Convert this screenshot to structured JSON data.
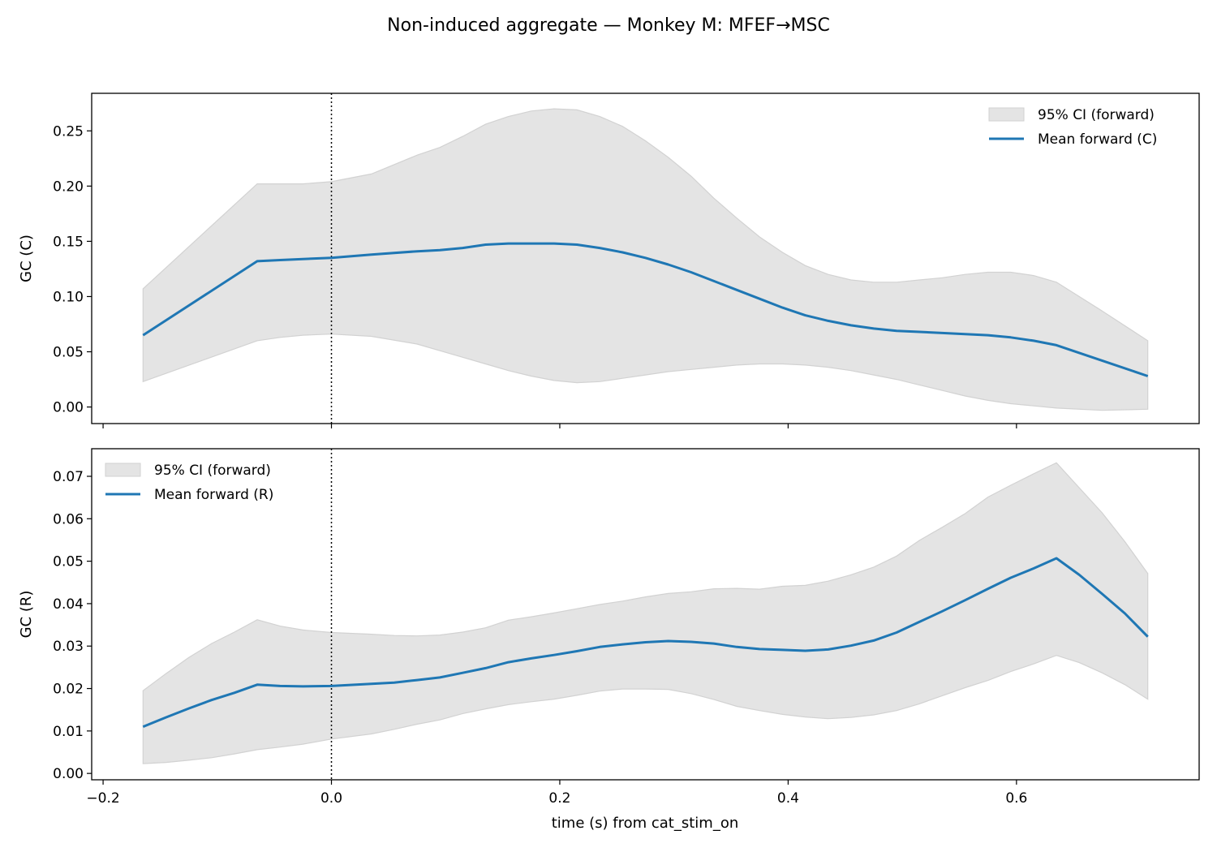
{
  "figure": {
    "title": "Non-induced aggregate — Monkey M: MFEF→MSC",
    "xlabel": "time (s) from cat_stim_on"
  },
  "colors": {
    "mean_line": "#1f77b4",
    "ci_fill": "#e4e4e4",
    "ci_edge": "#d2d2d2",
    "reference_line": "#000000"
  },
  "chart_data": [
    {
      "type": "line",
      "ylabel": "GC (C)",
      "xlim": [
        -0.21,
        0.76
      ],
      "ylim": [
        -0.015,
        0.284
      ],
      "xticks": [
        -0.2,
        0.0,
        0.2,
        0.4,
        0.6
      ],
      "xtick_labels_shown": false,
      "yticks": [
        0.0,
        0.05,
        0.1,
        0.15,
        0.2,
        0.25
      ],
      "ytick_labels": [
        "0.00",
        "0.05",
        "0.10",
        "0.15",
        "0.20",
        "0.25"
      ],
      "vline_x": 0.0,
      "legend_position": "upper-right",
      "legend": [
        "95% CI (forward)",
        "Mean forward (C)"
      ],
      "x": [
        -0.165,
        -0.065,
        -0.045,
        -0.025,
        0.0,
        0.035,
        0.075,
        0.095,
        0.115,
        0.135,
        0.155,
        0.175,
        0.195,
        0.215,
        0.235,
        0.255,
        0.275,
        0.295,
        0.315,
        0.335,
        0.355,
        0.375,
        0.395,
        0.415,
        0.435,
        0.455,
        0.475,
        0.495,
        0.515,
        0.535,
        0.555,
        0.575,
        0.595,
        0.615,
        0.635,
        0.675,
        0.715
      ],
      "mean": [
        0.065,
        0.132,
        0.133,
        0.134,
        0.135,
        0.138,
        0.141,
        0.142,
        0.144,
        0.147,
        0.148,
        0.148,
        0.148,
        0.147,
        0.144,
        0.14,
        0.135,
        0.129,
        0.122,
        0.114,
        0.106,
        0.098,
        0.09,
        0.083,
        0.078,
        0.074,
        0.071,
        0.069,
        0.068,
        0.067,
        0.066,
        0.065,
        0.063,
        0.06,
        0.056,
        0.042,
        0.028
      ],
      "ci_upper": [
        0.107,
        0.202,
        0.202,
        0.202,
        0.204,
        0.211,
        0.228,
        0.235,
        0.245,
        0.256,
        0.263,
        0.268,
        0.27,
        0.269,
        0.263,
        0.254,
        0.241,
        0.226,
        0.209,
        0.189,
        0.171,
        0.154,
        0.14,
        0.128,
        0.12,
        0.115,
        0.113,
        0.113,
        0.115,
        0.117,
        0.12,
        0.122,
        0.122,
        0.119,
        0.113,
        0.087,
        0.06
      ],
      "ci_lower": [
        0.023,
        0.06,
        0.063,
        0.065,
        0.066,
        0.064,
        0.057,
        0.051,
        0.045,
        0.039,
        0.033,
        0.028,
        0.024,
        0.022,
        0.023,
        0.026,
        0.029,
        0.032,
        0.034,
        0.036,
        0.038,
        0.039,
        0.039,
        0.038,
        0.036,
        0.033,
        0.029,
        0.025,
        0.02,
        0.015,
        0.01,
        0.006,
        0.003,
        0.001,
        -0.001,
        -0.003,
        -0.002
      ]
    },
    {
      "type": "line",
      "ylabel": "GC (R)",
      "xlim": [
        -0.21,
        0.76
      ],
      "ylim": [
        -0.0015,
        0.0765
      ],
      "xticks": [
        -0.2,
        0.0,
        0.2,
        0.4,
        0.6
      ],
      "xtick_labels": [
        "−0.2",
        "0.0",
        "0.2",
        "0.4",
        "0.6"
      ],
      "yticks": [
        0.0,
        0.01,
        0.02,
        0.03,
        0.04,
        0.05,
        0.06,
        0.07
      ],
      "ytick_labels": [
        "0.00",
        "0.01",
        "0.02",
        "0.03",
        "0.04",
        "0.05",
        "0.06",
        "0.07"
      ],
      "vline_x": 0.0,
      "legend_position": "upper-left",
      "legend": [
        "95% CI (forward)",
        "Mean forward (R)"
      ],
      "x": [
        -0.165,
        -0.145,
        -0.125,
        -0.105,
        -0.085,
        -0.065,
        -0.045,
        -0.025,
        0.0,
        0.035,
        0.055,
        0.075,
        0.095,
        0.115,
        0.135,
        0.155,
        0.175,
        0.195,
        0.215,
        0.235,
        0.255,
        0.275,
        0.295,
        0.315,
        0.335,
        0.355,
        0.375,
        0.395,
        0.415,
        0.435,
        0.455,
        0.475,
        0.495,
        0.515,
        0.535,
        0.555,
        0.575,
        0.595,
        0.615,
        0.635,
        0.655,
        0.675,
        0.695,
        0.715
      ],
      "mean": [
        0.011,
        0.0132,
        0.0153,
        0.0173,
        0.019,
        0.0209,
        0.0206,
        0.0205,
        0.0206,
        0.0211,
        0.0214,
        0.022,
        0.0226,
        0.0237,
        0.0248,
        0.0262,
        0.0271,
        0.0279,
        0.0288,
        0.0298,
        0.0304,
        0.0309,
        0.0312,
        0.031,
        0.0306,
        0.0298,
        0.0293,
        0.0291,
        0.0289,
        0.0292,
        0.0301,
        0.0313,
        0.0332,
        0.0357,
        0.0382,
        0.0408,
        0.0435,
        0.0461,
        0.0483,
        0.0507,
        0.0468,
        0.0423,
        0.0377,
        0.0322
      ],
      "ci_upper": [
        0.0195,
        0.0235,
        0.0273,
        0.0306,
        0.0333,
        0.0362,
        0.0347,
        0.0338,
        0.0332,
        0.0328,
        0.0325,
        0.0324,
        0.0326,
        0.0333,
        0.0343,
        0.0361,
        0.0369,
        0.0378,
        0.0388,
        0.0398,
        0.0406,
        0.0416,
        0.0424,
        0.0428,
        0.0435,
        0.0436,
        0.0434,
        0.0441,
        0.0443,
        0.0453,
        0.0468,
        0.0486,
        0.0512,
        0.0549,
        0.058,
        0.0612,
        0.0651,
        0.0679,
        0.0706,
        0.0732,
        0.0673,
        0.0614,
        0.0546,
        0.0471
      ],
      "ci_lower": [
        0.0023,
        0.0026,
        0.0031,
        0.0037,
        0.0046,
        0.0056,
        0.0062,
        0.0069,
        0.0081,
        0.0093,
        0.0104,
        0.0116,
        0.0126,
        0.0141,
        0.0152,
        0.0162,
        0.0169,
        0.0175,
        0.0184,
        0.0194,
        0.0199,
        0.0199,
        0.0198,
        0.0188,
        0.0174,
        0.0158,
        0.0148,
        0.0139,
        0.0133,
        0.0129,
        0.0132,
        0.0138,
        0.0148,
        0.0164,
        0.0183,
        0.0202,
        0.0219,
        0.024,
        0.0258,
        0.0278,
        0.0261,
        0.0237,
        0.0209,
        0.0175
      ]
    }
  ]
}
